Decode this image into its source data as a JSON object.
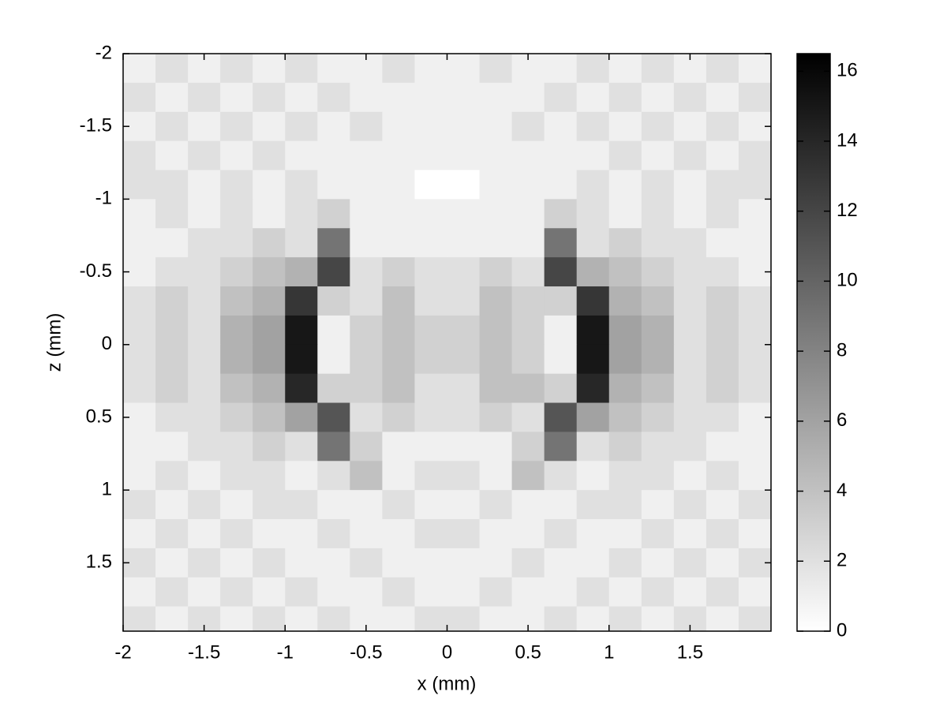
{
  "chart_data": {
    "type": "heatmap",
    "xlabel": "x (mm)",
    "ylabel": "z (mm)",
    "x": [
      -1.9,
      -1.7,
      -1.5,
      -1.3,
      -1.1,
      -0.9,
      -0.7,
      -0.5,
      -0.3,
      -0.1,
      0.1,
      0.3,
      0.5,
      0.7,
      0.9,
      1.1,
      1.3,
      1.5,
      1.7,
      1.9
    ],
    "y": [
      -1.9,
      -1.7,
      -1.5,
      -1.3,
      -1.1,
      -0.9,
      -0.7,
      -0.5,
      -0.3,
      -0.1,
      0.1,
      0.3,
      0.5,
      0.7,
      0.9,
      1.1,
      1.3,
      1.5,
      1.7,
      1.9
    ],
    "values": [
      [
        1,
        2,
        1,
        2,
        1,
        2,
        1,
        1,
        2,
        1,
        1,
        2,
        1,
        1,
        2,
        1,
        2,
        1,
        2,
        1
      ],
      [
        2,
        1,
        2,
        1,
        2,
        1,
        2,
        1,
        1,
        1,
        1,
        1,
        1,
        2,
        1,
        2,
        1,
        2,
        1,
        2
      ],
      [
        1,
        2,
        1,
        2,
        1,
        2,
        1,
        2,
        1,
        1,
        1,
        1,
        2,
        1,
        2,
        1,
        2,
        1,
        2,
        1
      ],
      [
        2,
        1,
        2,
        1,
        2,
        1,
        1,
        1,
        1,
        1,
        1,
        1,
        1,
        1,
        1,
        2,
        1,
        2,
        1,
        2
      ],
      [
        2,
        2,
        1,
        2,
        1,
        2,
        1,
        1,
        1,
        0,
        0,
        1,
        1,
        1,
        2,
        1,
        2,
        1,
        2,
        2
      ],
      [
        1,
        2,
        1,
        2,
        1,
        2,
        3,
        1,
        1,
        1,
        1,
        1,
        1,
        3,
        2,
        1,
        2,
        1,
        2,
        1
      ],
      [
        1,
        1,
        2,
        2,
        3,
        2,
        9,
        1,
        1,
        1,
        1,
        1,
        1,
        9,
        2,
        3,
        2,
        2,
        1,
        1
      ],
      [
        1,
        2,
        2,
        3,
        4,
        5,
        12,
        2,
        3,
        2,
        2,
        3,
        2,
        12,
        5,
        4,
        3,
        2,
        2,
        1
      ],
      [
        2,
        3,
        2,
        4,
        5,
        13,
        3,
        2,
        4,
        2,
        2,
        4,
        3,
        3,
        13,
        5,
        4,
        2,
        3,
        2
      ],
      [
        2,
        3,
        2,
        5,
        6,
        15,
        1,
        3,
        4,
        3,
        3,
        4,
        3,
        1,
        15,
        6,
        5,
        2,
        3,
        2
      ],
      [
        2,
        3,
        2,
        5,
        6,
        15,
        1,
        3,
        4,
        3,
        3,
        4,
        3,
        1,
        15,
        6,
        5,
        2,
        3,
        2
      ],
      [
        2,
        3,
        2,
        4,
        5,
        14,
        3,
        3,
        4,
        2,
        2,
        4,
        4,
        3,
        14,
        5,
        4,
        2,
        3,
        2
      ],
      [
        1,
        2,
        2,
        3,
        4,
        6,
        11,
        2,
        3,
        2,
        2,
        3,
        2,
        11,
        6,
        4,
        3,
        2,
        2,
        1
      ],
      [
        1,
        1,
        2,
        2,
        3,
        2,
        9,
        3,
        1,
        1,
        1,
        1,
        3,
        9,
        2,
        3,
        2,
        2,
        1,
        1
      ],
      [
        1,
        2,
        1,
        2,
        2,
        1,
        2,
        4,
        1,
        2,
        2,
        1,
        4,
        2,
        1,
        2,
        2,
        1,
        2,
        1
      ],
      [
        2,
        1,
        2,
        1,
        2,
        2,
        1,
        1,
        2,
        1,
        1,
        2,
        1,
        1,
        2,
        2,
        1,
        2,
        1,
        2
      ],
      [
        1,
        2,
        1,
        2,
        1,
        1,
        2,
        1,
        1,
        2,
        2,
        1,
        1,
        2,
        1,
        1,
        2,
        1,
        2,
        1
      ],
      [
        2,
        1,
        2,
        1,
        2,
        1,
        1,
        2,
        1,
        1,
        1,
        1,
        2,
        1,
        1,
        2,
        1,
        2,
        1,
        2
      ],
      [
        1,
        2,
        1,
        2,
        1,
        2,
        1,
        1,
        2,
        1,
        1,
        2,
        1,
        1,
        2,
        1,
        2,
        1,
        2,
        1
      ],
      [
        2,
        1,
        2,
        1,
        2,
        1,
        2,
        1,
        1,
        2,
        2,
        1,
        1,
        2,
        1,
        2,
        1,
        2,
        1,
        2
      ]
    ],
    "xlim": [
      -2,
      2
    ],
    "ylim": [
      -2,
      1.97
    ],
    "xticks": [
      -2,
      -1.5,
      -1,
      -0.5,
      0,
      0.5,
      1,
      1.5
    ],
    "yticks": [
      -2,
      -1.5,
      -1,
      -0.5,
      0,
      0.5,
      1,
      1.5
    ],
    "low_color": "#ffffff",
    "high_color": "#000000",
    "colorbar": {
      "clim": [
        0,
        16.5
      ],
      "ticks": [
        0,
        2,
        4,
        6,
        8,
        10,
        12,
        14,
        16
      ]
    }
  }
}
